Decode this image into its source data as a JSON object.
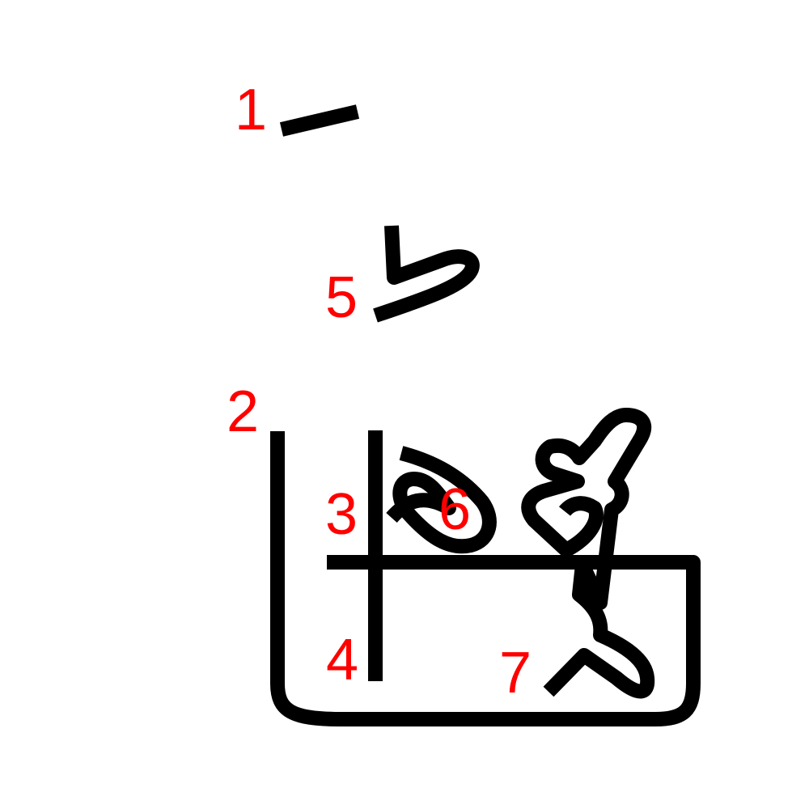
{
  "colors": {
    "stroke": "#000000",
    "number": "#ff0000",
    "background": "#ffffff"
  },
  "stroke_numbers": [
    "1",
    "2",
    "3",
    "4",
    "5",
    "6",
    "7"
  ]
}
